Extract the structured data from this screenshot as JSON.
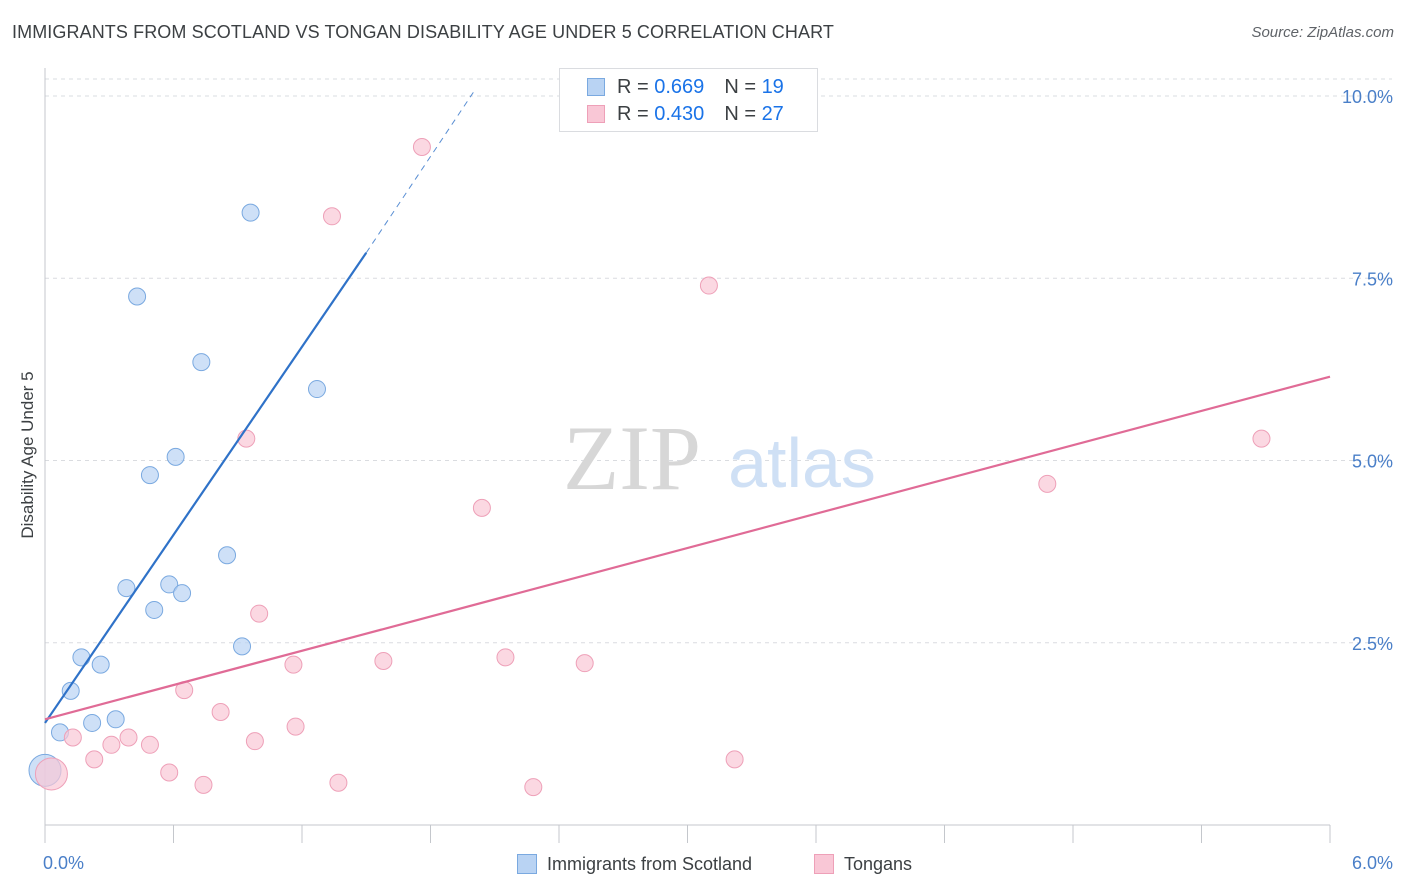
{
  "title": "IMMIGRANTS FROM SCOTLAND VS TONGAN DISABILITY AGE UNDER 5 CORRELATION CHART",
  "source": "Source: ZipAtlas.com",
  "watermark": {
    "zip": "ZIP",
    "atlas": "atlas"
  },
  "legend": {
    "series1": {
      "r_label": "R = ",
      "r_value": "0.669",
      "n_label": "N = ",
      "n_value": "19"
    },
    "series2": {
      "r_label": "R = ",
      "r_value": "0.430",
      "n_label": "N = ",
      "n_value": "27"
    }
  },
  "colors": {
    "blue_fill": "#b9d3f3",
    "blue_stroke": "#7aa9e0",
    "blue_line": "#2f72c8",
    "pink_fill": "#f9c7d6",
    "pink_stroke": "#eea0b8",
    "pink_line": "#e06b96",
    "tick_text": "#4a7fc8",
    "grid": "#dadce0"
  },
  "chart_data": {
    "type": "scatter",
    "title": "IMMIGRANTS FROM SCOTLAND VS TONGAN DISABILITY AGE UNDER 5 CORRELATION CHART",
    "xlabel": "",
    "ylabel": "Disability Age Under 5",
    "xlim": [
      0,
      6.0
    ],
    "ylim": [
      0,
      10.0
    ],
    "x_tick_labels": [
      "0.0%",
      "6.0%"
    ],
    "y_ticks": [
      2.5,
      5.0,
      7.5,
      10.0
    ],
    "y_tick_labels": [
      "2.5%",
      "5.0%",
      "7.5%",
      "10.0%"
    ],
    "series": [
      {
        "name": "Immigrants from Scotland",
        "color": "#b9d3f3",
        "points": [
          [
            0.0,
            0.75
          ],
          [
            0.07,
            1.27
          ],
          [
            0.12,
            1.84
          ],
          [
            0.17,
            2.3
          ],
          [
            0.22,
            1.4
          ],
          [
            0.26,
            2.2
          ],
          [
            0.33,
            1.45
          ],
          [
            0.38,
            3.25
          ],
          [
            0.43,
            7.25
          ],
          [
            0.49,
            4.8
          ],
          [
            0.51,
            2.95
          ],
          [
            0.58,
            3.3
          ],
          [
            0.61,
            5.05
          ],
          [
            0.64,
            3.18
          ],
          [
            0.73,
            6.35
          ],
          [
            0.85,
            3.7
          ],
          [
            0.92,
            2.45
          ],
          [
            0.96,
            8.4
          ],
          [
            1.27,
            5.98
          ]
        ],
        "trend": {
          "x": [
            0.0,
            1.5
          ],
          "y": [
            1.4,
            7.85
          ],
          "dashed_x": [
            1.5,
            2.0
          ],
          "dashed_y": [
            7.85,
            10.05
          ]
        }
      },
      {
        "name": "Tongans",
        "color": "#f9c7d6",
        "points": [
          [
            0.03,
            0.7
          ],
          [
            0.13,
            1.2
          ],
          [
            0.23,
            0.9
          ],
          [
            0.31,
            1.1
          ],
          [
            0.39,
            1.2
          ],
          [
            0.49,
            1.1
          ],
          [
            0.58,
            0.72
          ],
          [
            0.65,
            1.85
          ],
          [
            0.74,
            0.55
          ],
          [
            0.82,
            1.55
          ],
          [
            0.94,
            5.3
          ],
          [
            0.98,
            1.15
          ],
          [
            1.0,
            2.9
          ],
          [
            1.16,
            2.2
          ],
          [
            1.17,
            1.35
          ],
          [
            1.34,
            8.35
          ],
          [
            1.37,
            0.58
          ],
          [
            1.58,
            2.25
          ],
          [
            1.76,
            9.3
          ],
          [
            2.04,
            4.35
          ],
          [
            2.15,
            2.3
          ],
          [
            2.28,
            0.52
          ],
          [
            2.52,
            2.22
          ],
          [
            3.1,
            7.4
          ],
          [
            3.22,
            0.9
          ],
          [
            4.68,
            4.68
          ],
          [
            5.68,
            5.3
          ]
        ],
        "trend": {
          "x": [
            0.0,
            6.0
          ],
          "y": [
            1.45,
            6.15
          ]
        }
      }
    ]
  }
}
